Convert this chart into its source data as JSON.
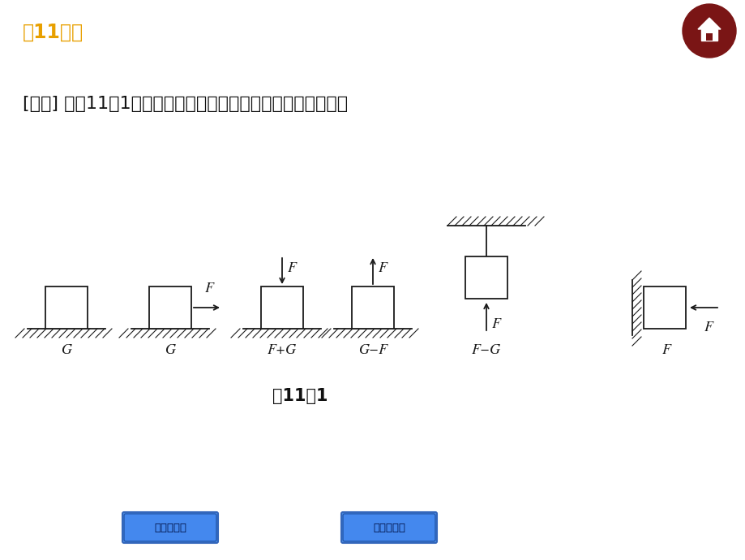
{
  "bg_color": "#ffffff",
  "title_text": "第11课时",
  "title_color": "#e8a000",
  "title_fontsize": 17,
  "question_text": "[比较] 如图11－1所示是承受面在各种情况下所受压力的大小。",
  "question_fontsize": 16,
  "figure_caption": "图11－1",
  "line_color": "#1a1a1a",
  "btn1_text": "考点聚焦》",
  "btn2_text": "归类示例》"
}
